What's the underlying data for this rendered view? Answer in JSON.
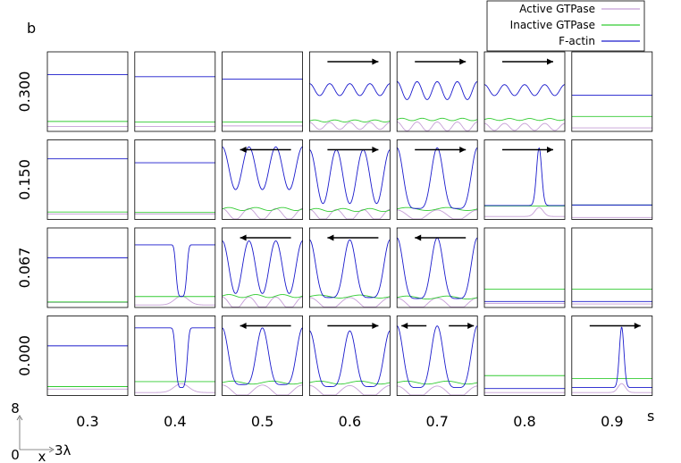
{
  "panel_label": "b",
  "legend": [
    {
      "label": "Active GTPase",
      "color": "#c59fd6"
    },
    {
      "label": "Inactive GTPase",
      "color": "#33cc33"
    },
    {
      "label": "F-actin",
      "color": "#1a1acc"
    }
  ],
  "chart_data": {
    "type": "line",
    "title": "",
    "xlabel": "s",
    "ylabel": "",
    "s_values": [
      "0.3",
      "0.4",
      "0.5",
      "0.6",
      "0.7",
      "0.8",
      "0.9"
    ],
    "row_values": [
      "0.300",
      "0.150",
      "0.067",
      "0.000"
    ],
    "series_names": [
      "Active GTPase",
      "Inactive GTPase",
      "F-actin"
    ],
    "axis_scale": {
      "y_max": "8",
      "origin": "0",
      "x_label": "x",
      "x_max": "3λ"
    },
    "grid": false,
    "legend_position": "top-right",
    "arrow_legend": {
      "right": "travelling right",
      "left": "travelling left",
      "both": "splitting"
    },
    "panels": [
      [
        {
          "kind": "flat",
          "actin": 5.7,
          "inact": 1.0,
          "act": 0.5,
          "arrow": null
        },
        {
          "kind": "flat",
          "actin": 5.5,
          "inact": 0.95,
          "act": 0.5,
          "arrow": null
        },
        {
          "kind": "flat",
          "actin": 5.25,
          "inact": 0.95,
          "act": 0.55,
          "arrow": null
        },
        {
          "kind": "wave",
          "n": 4,
          "a_min": 3.6,
          "a_max": 4.8,
          "a_shape": "sine",
          "inact": 1.05,
          "inact_amp": 0.1,
          "act": 0.55,
          "act_amp": 0.35,
          "arrow": "right"
        },
        {
          "kind": "wave",
          "n": 4,
          "a_min": 3.2,
          "a_max": 5.0,
          "a_shape": "sine",
          "inact": 1.2,
          "inact_amp": 0.12,
          "act": 0.5,
          "act_amp": 0.45,
          "arrow": "right"
        },
        {
          "kind": "wave",
          "n": 4,
          "a_min": 3.6,
          "a_max": 4.7,
          "a_shape": "sine",
          "inact": 1.2,
          "inact_amp": 0.1,
          "act": 0.45,
          "act_amp": 0.35,
          "arrow": "right"
        },
        {
          "kind": "flat",
          "actin": 3.65,
          "inact": 1.5,
          "act": 0.35,
          "arrow": null
        }
      ],
      [
        {
          "kind": "flat",
          "actin": 6.1,
          "inact": 0.75,
          "act": 0.55,
          "arrow": null
        },
        {
          "kind": "flat",
          "actin": 5.7,
          "inact": 0.7,
          "act": 0.55,
          "arrow": null
        },
        {
          "kind": "wave",
          "n": 3,
          "a_min": 3.0,
          "a_max": 7.3,
          "a_shape": "sine",
          "inact": 1.05,
          "inact_amp": 0.15,
          "act": 0.55,
          "act_amp": 0.55,
          "arrow": "left"
        },
        {
          "kind": "wave",
          "n": 3,
          "a_min": 1.6,
          "a_max": 7.0,
          "a_shape": "sine",
          "inact": 0.95,
          "inact_amp": 0.15,
          "act": 0.45,
          "act_amp": 0.55,
          "arrow": "right"
        },
        {
          "kind": "wave",
          "n": 2,
          "a_min": 1.1,
          "a_max": 7.2,
          "a_shape": "sharp",
          "inact": 1.05,
          "inact_amp": 0.15,
          "act": 0.45,
          "act_amp": 0.5,
          "arrow": "right"
        },
        {
          "kind": "peak",
          "centers": [
            0.68
          ],
          "width": 0.045,
          "a_base": 1.4,
          "a_max": 7.2,
          "inact": 1.35,
          "act": 0.3,
          "arrow": "right"
        },
        {
          "kind": "flat",
          "actin": 1.45,
          "inact": 1.45,
          "act": 0.2,
          "arrow": null
        }
      ],
      [
        {
          "kind": "flat",
          "actin": 5.0,
          "inact": 0.55,
          "act": 0.5,
          "arrow": null
        },
        {
          "kind": "dip",
          "centers": [
            0.58
          ],
          "width": 0.075,
          "a_base": 6.3,
          "a_min": 1.1,
          "inact": 1.1,
          "act": 0.25,
          "arrow": null
        },
        {
          "kind": "wave",
          "n": 3,
          "a_min": 1.4,
          "a_max": 6.7,
          "a_shape": "sine",
          "inact": 1.15,
          "inact_amp": 0.15,
          "act": 0.45,
          "act_amp": 0.6,
          "arrow": "left"
        },
        {
          "kind": "wave",
          "n": 2,
          "a_min": 1.0,
          "a_max": 6.8,
          "a_shape": "sharp",
          "inact": 1.1,
          "inact_amp": 0.15,
          "act": 0.4,
          "act_amp": 0.6,
          "arrow": "left"
        },
        {
          "kind": "wave",
          "n": 2,
          "a_min": 0.9,
          "a_max": 7.0,
          "a_shape": "sharp",
          "inact": 1.0,
          "inact_amp": 0.15,
          "act": 0.35,
          "act_amp": 0.6,
          "arrow": "left"
        },
        {
          "kind": "flat",
          "actin": 0.6,
          "inact": 1.85,
          "act": 0.4,
          "arrow": null
        },
        {
          "kind": "flat",
          "actin": 0.6,
          "inact": 1.85,
          "act": 0.35,
          "arrow": null
        }
      ],
      [
        {
          "kind": "flat",
          "actin": 5.0,
          "inact": 0.9,
          "act": 0.65,
          "arrow": null
        },
        {
          "kind": "dip",
          "centers": [
            0.58
          ],
          "width": 0.08,
          "a_base": 6.8,
          "a_min": 0.8,
          "inact": 1.4,
          "act": 0.3,
          "arrow": null
        },
        {
          "kind": "wave",
          "n": 2,
          "a_min": 1.1,
          "a_max": 6.8,
          "a_shape": "sharp",
          "inact": 1.3,
          "inact_amp": 0.15,
          "act": 0.45,
          "act_amp": 0.6,
          "arrow": "left"
        },
        {
          "kind": "wave",
          "n": 2,
          "a_min": 0.9,
          "a_max": 6.5,
          "a_shape": "sharp",
          "inact": 1.3,
          "inact_amp": 0.15,
          "act": 0.4,
          "act_amp": 0.6,
          "arrow": "right"
        },
        {
          "kind": "wave",
          "n": 2,
          "a_min": 0.8,
          "a_max": 7.0,
          "a_shape": "sharp",
          "inact": 1.3,
          "inact_amp": 0.15,
          "act": 0.35,
          "act_amp": 0.6,
          "arrow": "both"
        },
        {
          "kind": "flat",
          "actin": 0.7,
          "inact": 2.0,
          "act": 0.3,
          "arrow": null
        },
        {
          "kind": "peak",
          "centers": [
            0.62
          ],
          "width": 0.04,
          "a_base": 0.8,
          "a_max": 6.9,
          "inact": 1.7,
          "act": 0.3,
          "arrow": "right"
        }
      ]
    ]
  }
}
